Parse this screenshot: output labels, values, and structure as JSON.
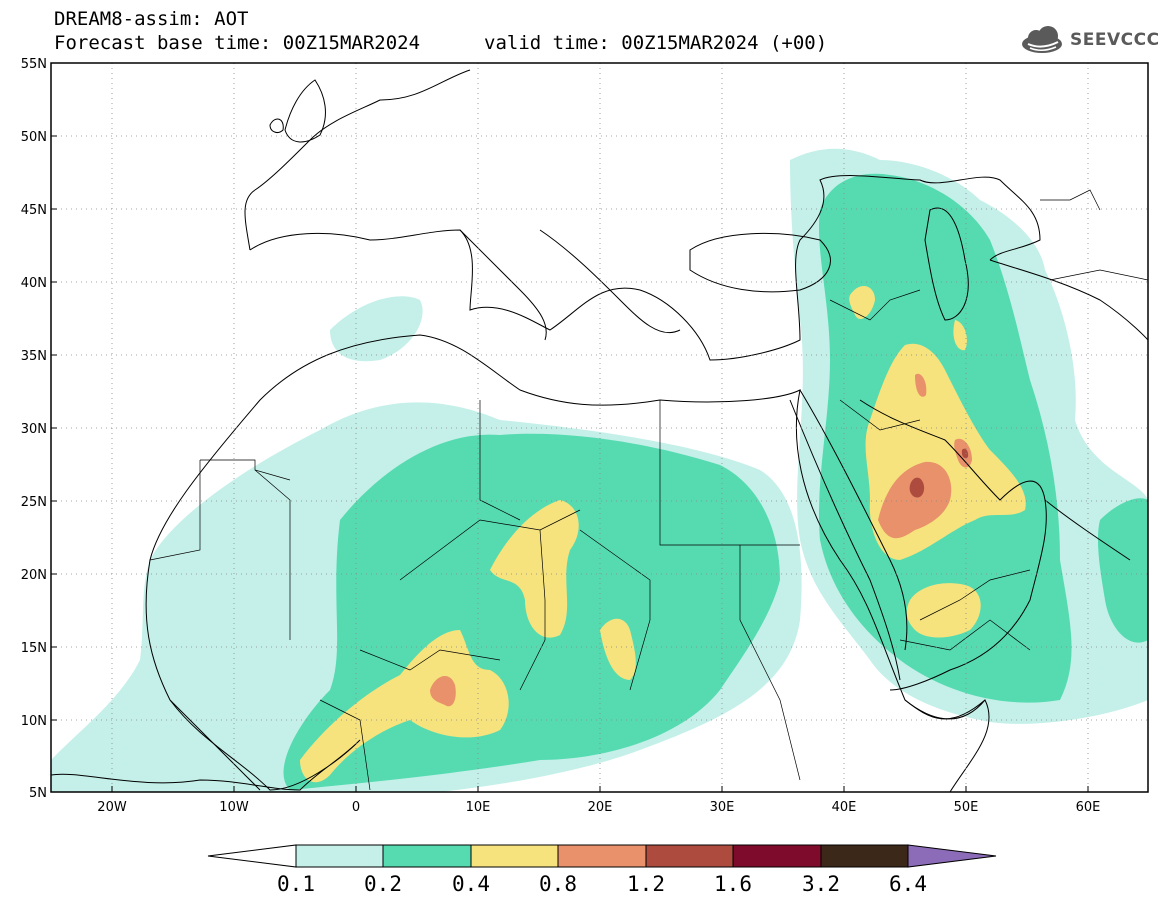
{
  "header": {
    "line1": "DREAM8-assim: AOT",
    "line2": "Forecast base time: 00Z15MAR2024",
    "valid": "valid time: 00Z15MAR2024 (+00)"
  },
  "logo": {
    "text": "SEEVCCC",
    "icon": "cloud-logo-icon"
  },
  "map": {
    "lon_range": [
      -25,
      65
    ],
    "lat_range": [
      5,
      55
    ],
    "lat_ticks": [
      "5N",
      "10N",
      "15N",
      "20N",
      "25N",
      "30N",
      "35N",
      "40N",
      "45N",
      "50N",
      "55N"
    ],
    "lon_ticks": [
      "20W",
      "10W",
      "0",
      "10E",
      "20E",
      "30E",
      "40E",
      "50E",
      "60E"
    ],
    "gridlines": true
  },
  "colorbar": {
    "labels": [
      "0.1",
      "0.2",
      "0.4",
      "0.8",
      "1.2",
      "1.6",
      "3.2",
      "6.4"
    ],
    "colors": [
      "#c4f0e9",
      "#56dbb1",
      "#f6e37d",
      "#e8916a",
      "#ad4b3f",
      "#7f0b2c",
      "#3b2818",
      "#8c6cb8"
    ]
  }
}
